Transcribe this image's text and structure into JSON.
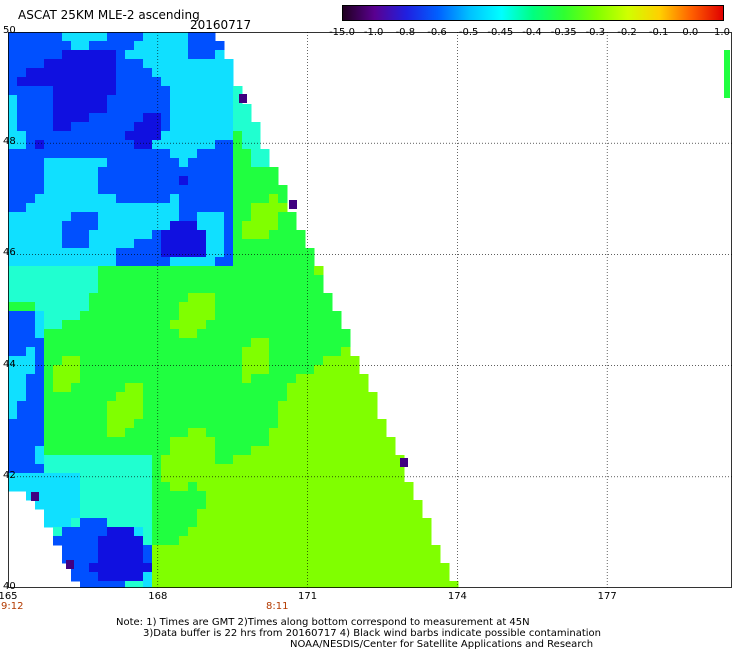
{
  "header": {
    "title": "ASCAT 25KM MLE-2 ascending",
    "date": "20160717"
  },
  "colorbar": {
    "labels": [
      "-15.0",
      "-1.0",
      "-0.8",
      "-0.6",
      "-0.5",
      "-0.45",
      "-0.4",
      "-0.35",
      "-0.3",
      "-0.2",
      "-0.1",
      "0.0",
      "1.0"
    ],
    "colors": [
      "#200020",
      "#5a0090",
      "#2020e0",
      "#0060ff",
      "#00c0ff",
      "#00ffff",
      "#00ff80",
      "#30ff30",
      "#80ff00",
      "#d0ff00",
      "#ffd000",
      "#ff6000",
      "#e00000"
    ]
  },
  "map": {
    "latitudes": [
      "50",
      "48",
      "46",
      "44",
      "42",
      "40"
    ],
    "longitudes": [
      "165",
      "168",
      "171",
      "174",
      "177"
    ],
    "lat_range": [
      40,
      50
    ],
    "lon_range": [
      165,
      179.5
    ],
    "swath_palette": {
      "dark_blue": "#1010e0",
      "blue": "#0050ff",
      "cyan": "#10e0ff",
      "aqua": "#20ffd0",
      "green": "#20ff40",
      "lime": "#80ff00",
      "violet": "#400080"
    }
  },
  "times": {
    "left": "9:12",
    "middle": "8:11"
  },
  "footer": {
    "line1": "Note: 1) Times are GMT 2)Times along bottom correspond to measurement at 45N",
    "line2": "3)Data buffer is 22 hrs from 20160717 4) Black wind barbs indicate possible contamination",
    "line3": "NOAA/NESDIS/Center for Satellite Applications and Research"
  }
}
